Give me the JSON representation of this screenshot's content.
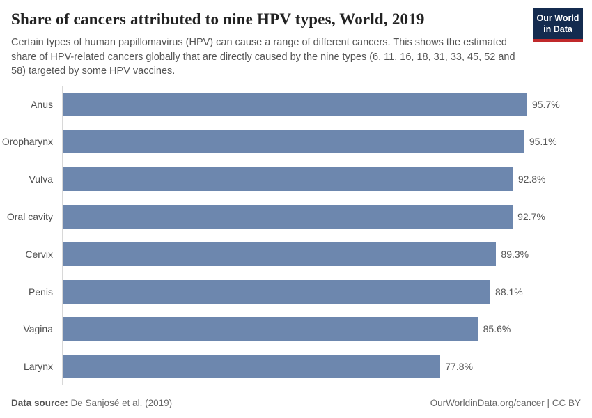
{
  "header": {
    "title": "Share of cancers attributed to nine HPV types, World, 2019",
    "subtitle": "Certain types of human papillomavirus (HPV) can cause a range of different cancers. This shows the estimated share of HPV-related cancers globally that are directly caused by the nine types (6, 11, 16, 18, 31, 33, 45, 52 and 58) targeted by some HPV vaccines.",
    "logo": {
      "line1": "Our World",
      "line2": "in Data",
      "bg_color": "#142b4f",
      "stripe_color": "#c0292b"
    }
  },
  "chart_data": {
    "type": "bar",
    "orientation": "horizontal",
    "title": "Share of cancers attributed to nine HPV types, World, 2019",
    "categories": [
      "Anus",
      "Oropharynx",
      "Vulva",
      "Oral cavity",
      "Cervix",
      "Penis",
      "Vagina",
      "Larynx"
    ],
    "values": [
      95.7,
      95.1,
      92.8,
      92.7,
      89.3,
      88.1,
      85.6,
      77.8
    ],
    "value_labels": [
      "95.7%",
      "95.1%",
      "92.8%",
      "92.7%",
      "89.3%",
      "88.1%",
      "85.6%",
      "77.8%"
    ],
    "xlabel": "",
    "ylabel": "",
    "xlim": [
      0,
      100
    ],
    "unit": "%",
    "bar_color": "#6d87ae",
    "axis_color": "#d8d8d8",
    "grid": false,
    "legend": false
  },
  "footer": {
    "source_label": "Data source:",
    "source_text": " De Sanjosé et al. (2019)",
    "right_text": "OurWorldinData.org/cancer | CC BY"
  }
}
